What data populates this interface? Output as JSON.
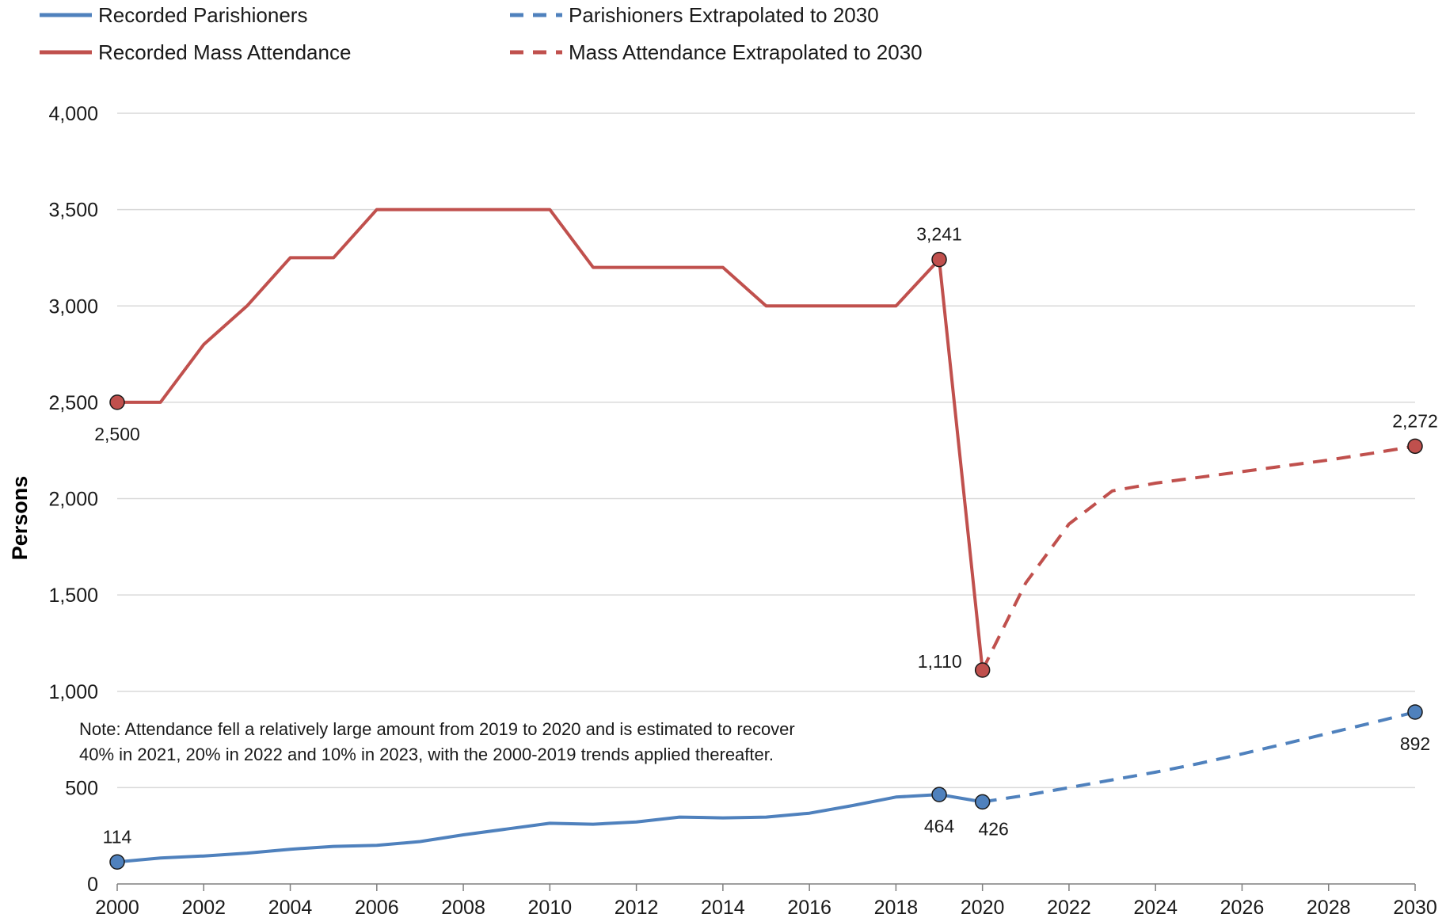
{
  "colors": {
    "parishioners": "#4f81bd",
    "attendance": "#c0504d",
    "grid": "#d9d9d9",
    "axis": "#7f7f7f"
  },
  "legend": [
    {
      "label": "Recorded Parishioners",
      "series": "parishioners",
      "dashed": false
    },
    {
      "label": "Parishioners Extrapolated to 2030",
      "series": "parishioners",
      "dashed": true
    },
    {
      "label": "Recorded Mass Attendance",
      "series": "attendance",
      "dashed": false
    },
    {
      "label": "Mass Attendance Extrapolated to 2030",
      "series": "attendance",
      "dashed": true
    }
  ],
  "note": {
    "line1": "Note: Attendance fell a relatively large amount from 2019 to 2020 and is estimated to recover",
    "line2": "40% in 2021, 20% in 2022 and 10% in 2023, with the 2000-2019 trends applied thereafter."
  },
  "chart_data": {
    "type": "line",
    "title": "",
    "xlabel": "",
    "ylabel": "Persons",
    "xlim": [
      2000,
      2030
    ],
    "ylim": [
      0,
      4000
    ],
    "x_ticks": [
      2000,
      2002,
      2004,
      2006,
      2008,
      2010,
      2012,
      2014,
      2016,
      2018,
      2020,
      2022,
      2024,
      2026,
      2028,
      2030
    ],
    "y_ticks": [
      0,
      500,
      1000,
      1500,
      2000,
      2500,
      3000,
      3500,
      4000
    ],
    "y_tick_labels": [
      "0",
      "500",
      "1,000",
      "1,500",
      "2,000",
      "2,500",
      "3,000",
      "3,500",
      "4,000"
    ],
    "grid": true,
    "legend_position": "top",
    "series": [
      {
        "name": "Recorded Parishioners",
        "color_key": "parishioners",
        "dashed": false,
        "x": [
          2000,
          2001,
          2002,
          2003,
          2004,
          2005,
          2006,
          2007,
          2008,
          2009,
          2010,
          2011,
          2012,
          2013,
          2014,
          2015,
          2016,
          2017,
          2018,
          2019,
          2020
        ],
        "y": [
          114,
          135,
          145,
          160,
          180,
          195,
          200,
          220,
          255,
          285,
          315,
          310,
          322,
          347,
          343,
          347,
          367,
          407,
          451,
          464,
          426
        ]
      },
      {
        "name": "Parishioners Extrapolated to 2030",
        "color_key": "parishioners",
        "dashed": true,
        "x": [
          2020,
          2021,
          2022,
          2023,
          2024,
          2025,
          2026,
          2027,
          2028,
          2029,
          2030
        ],
        "y": [
          426,
          460,
          500,
          540,
          580,
          625,
          675,
          728,
          782,
          836,
          892
        ]
      },
      {
        "name": "Recorded Mass Attendance",
        "color_key": "attendance",
        "dashed": false,
        "x": [
          2000,
          2001,
          2002,
          2003,
          2004,
          2005,
          2006,
          2007,
          2008,
          2009,
          2010,
          2011,
          2012,
          2013,
          2014,
          2015,
          2016,
          2017,
          2018,
          2019,
          2020
        ],
        "y": [
          2500,
          2500,
          2800,
          3000,
          3250,
          3250,
          3500,
          3500,
          3500,
          3500,
          3500,
          3200,
          3200,
          3200,
          3200,
          3000,
          3000,
          3000,
          3000,
          3241,
          1110
        ]
      },
      {
        "name": "Mass Attendance Extrapolated to 2030",
        "color_key": "attendance",
        "dashed": true,
        "x": [
          2020,
          2021,
          2022,
          2023,
          2024,
          2025,
          2026,
          2027,
          2028,
          2029,
          2030
        ],
        "y": [
          1110,
          1562,
          1868,
          2040,
          2080,
          2110,
          2140,
          2170,
          2200,
          2235,
          2272
        ]
      }
    ],
    "markers": [
      {
        "series": "parishioners",
        "x": 2000,
        "y": 114,
        "label": "114",
        "label_pos": "above"
      },
      {
        "series": "parishioners",
        "x": 2019,
        "y": 464,
        "label": "464",
        "label_pos": "below"
      },
      {
        "series": "parishioners",
        "x": 2020,
        "y": 426,
        "label": "426",
        "label_pos": "below-right"
      },
      {
        "series": "parishioners",
        "x": 2030,
        "y": 892,
        "label": "892",
        "label_pos": "below"
      },
      {
        "series": "attendance",
        "x": 2000,
        "y": 2500,
        "label": "2,500",
        "label_pos": "below"
      },
      {
        "series": "attendance",
        "x": 2019,
        "y": 3241,
        "label": "3,241",
        "label_pos": "above"
      },
      {
        "series": "attendance",
        "x": 2020,
        "y": 1110,
        "label": "1,110",
        "label_pos": "left"
      },
      {
        "series": "attendance",
        "x": 2030,
        "y": 2272,
        "label": "2,272",
        "label_pos": "above"
      }
    ]
  }
}
